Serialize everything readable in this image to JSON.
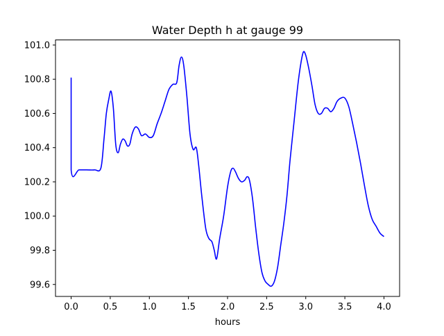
{
  "chart_data": {
    "type": "line",
    "title": "Water Depth h at gauge 99",
    "xlabel": "hours",
    "ylabel": "",
    "xlim": [
      -0.2,
      4.2
    ],
    "ylim": [
      99.53,
      101.03
    ],
    "grid": false,
    "legend": "none",
    "x_ticks": [
      0.0,
      0.5,
      1.0,
      1.5,
      2.0,
      2.5,
      3.0,
      3.5,
      4.0
    ],
    "x_tick_labels": [
      "0.0",
      "0.5",
      "1.0",
      "1.5",
      "2.0",
      "2.5",
      "3.0",
      "3.5",
      "4.0"
    ],
    "y_ticks": [
      99.6,
      99.8,
      100.0,
      100.2,
      100.4,
      100.6,
      100.8,
      101.0
    ],
    "y_tick_labels": [
      "99.6",
      "99.8",
      "100.0",
      "100.2",
      "100.4",
      "100.6",
      "100.8",
      "101.0"
    ],
    "colors": {
      "line": "#0000ff"
    },
    "series": [
      {
        "points": [
          [
            0.0,
            100.81
          ],
          [
            0.0,
            100.27
          ],
          [
            0.1,
            100.27
          ],
          [
            0.2,
            100.27
          ],
          [
            0.3,
            100.27
          ],
          [
            0.38,
            100.28
          ],
          [
            0.42,
            100.45
          ],
          [
            0.45,
            100.6
          ],
          [
            0.48,
            100.68
          ],
          [
            0.51,
            100.73
          ],
          [
            0.54,
            100.63
          ],
          [
            0.57,
            100.42
          ],
          [
            0.6,
            100.37
          ],
          [
            0.63,
            100.42
          ],
          [
            0.66,
            100.45
          ],
          [
            0.69,
            100.44
          ],
          [
            0.72,
            100.41
          ],
          [
            0.75,
            100.42
          ],
          [
            0.78,
            100.48
          ],
          [
            0.82,
            100.52
          ],
          [
            0.86,
            100.51
          ],
          [
            0.9,
            100.47
          ],
          [
            0.95,
            100.48
          ],
          [
            1.0,
            100.46
          ],
          [
            1.05,
            100.47
          ],
          [
            1.1,
            100.54
          ],
          [
            1.15,
            100.6
          ],
          [
            1.2,
            100.67
          ],
          [
            1.25,
            100.74
          ],
          [
            1.3,
            100.77
          ],
          [
            1.35,
            100.78
          ],
          [
            1.38,
            100.88
          ],
          [
            1.41,
            100.93
          ],
          [
            1.44,
            100.88
          ],
          [
            1.48,
            100.7
          ],
          [
            1.52,
            100.48
          ],
          [
            1.56,
            100.39
          ],
          [
            1.6,
            100.4
          ],
          [
            1.63,
            100.3
          ],
          [
            1.67,
            100.12
          ],
          [
            1.72,
            99.93
          ],
          [
            1.76,
            99.87
          ],
          [
            1.8,
            99.85
          ],
          [
            1.83,
            99.8
          ],
          [
            1.86,
            99.75
          ],
          [
            1.9,
            99.87
          ],
          [
            1.95,
            100.0
          ],
          [
            2.0,
            100.17
          ],
          [
            2.04,
            100.26
          ],
          [
            2.07,
            100.28
          ],
          [
            2.1,
            100.26
          ],
          [
            2.14,
            100.22
          ],
          [
            2.18,
            100.2
          ],
          [
            2.22,
            100.21
          ],
          [
            2.25,
            100.23
          ],
          [
            2.28,
            100.21
          ],
          [
            2.32,
            100.1
          ],
          [
            2.36,
            99.93
          ],
          [
            2.4,
            99.78
          ],
          [
            2.44,
            99.67
          ],
          [
            2.48,
            99.62
          ],
          [
            2.52,
            99.6
          ],
          [
            2.56,
            99.59
          ],
          [
            2.6,
            99.62
          ],
          [
            2.64,
            99.7
          ],
          [
            2.68,
            99.83
          ],
          [
            2.72,
            99.96
          ],
          [
            2.76,
            100.12
          ],
          [
            2.8,
            100.33
          ],
          [
            2.85,
            100.55
          ],
          [
            2.9,
            100.77
          ],
          [
            2.94,
            100.9
          ],
          [
            2.97,
            100.96
          ],
          [
            3.0,
            100.94
          ],
          [
            3.04,
            100.86
          ],
          [
            3.08,
            100.76
          ],
          [
            3.12,
            100.65
          ],
          [
            3.16,
            100.6
          ],
          [
            3.2,
            100.6
          ],
          [
            3.24,
            100.63
          ],
          [
            3.28,
            100.63
          ],
          [
            3.32,
            100.61
          ],
          [
            3.36,
            100.63
          ],
          [
            3.4,
            100.67
          ],
          [
            3.45,
            100.69
          ],
          [
            3.5,
            100.69
          ],
          [
            3.55,
            100.64
          ],
          [
            3.6,
            100.54
          ],
          [
            3.65,
            100.43
          ],
          [
            3.7,
            100.31
          ],
          [
            3.75,
            100.18
          ],
          [
            3.8,
            100.06
          ],
          [
            3.85,
            99.98
          ],
          [
            3.9,
            99.94
          ],
          [
            3.95,
            99.9
          ],
          [
            4.0,
            99.88
          ]
        ]
      }
    ]
  }
}
